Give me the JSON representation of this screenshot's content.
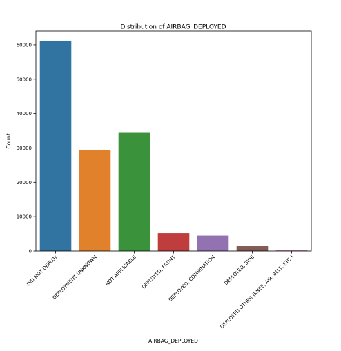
{
  "chart_data": {
    "type": "bar",
    "title": "Distribution of AIRBAG_DEPLOYED",
    "xlabel": "AIRBAG_DEPLOYED",
    "ylabel": "Count",
    "ylim": [
      0,
      64000
    ],
    "yticks": [
      0,
      10000,
      20000,
      30000,
      40000,
      50000,
      60000
    ],
    "ytick_labels": [
      "0",
      "10000",
      "20000",
      "30000",
      "40000",
      "50000",
      "60000"
    ],
    "grid": false,
    "legend": "none",
    "categories": [
      "DID NOT DEPLOY",
      "DEPLOYMENT UNKNOWN",
      "NOT APPLICABLE",
      "DEPLOYED, FRONT",
      "DEPLOYED, COMBINATION",
      "DEPLOYED, SIDE",
      "DEPLOYED OTHER (KNEE, AIR, BELT, ETC.)"
    ],
    "values": [
      61200,
      29400,
      34400,
      5200,
      4500,
      1400,
      200
    ],
    "colors": [
      "#3274a1",
      "#e1812c",
      "#3a923a",
      "#c03d3e",
      "#9372b2",
      "#845b53",
      "#d684bd"
    ]
  }
}
